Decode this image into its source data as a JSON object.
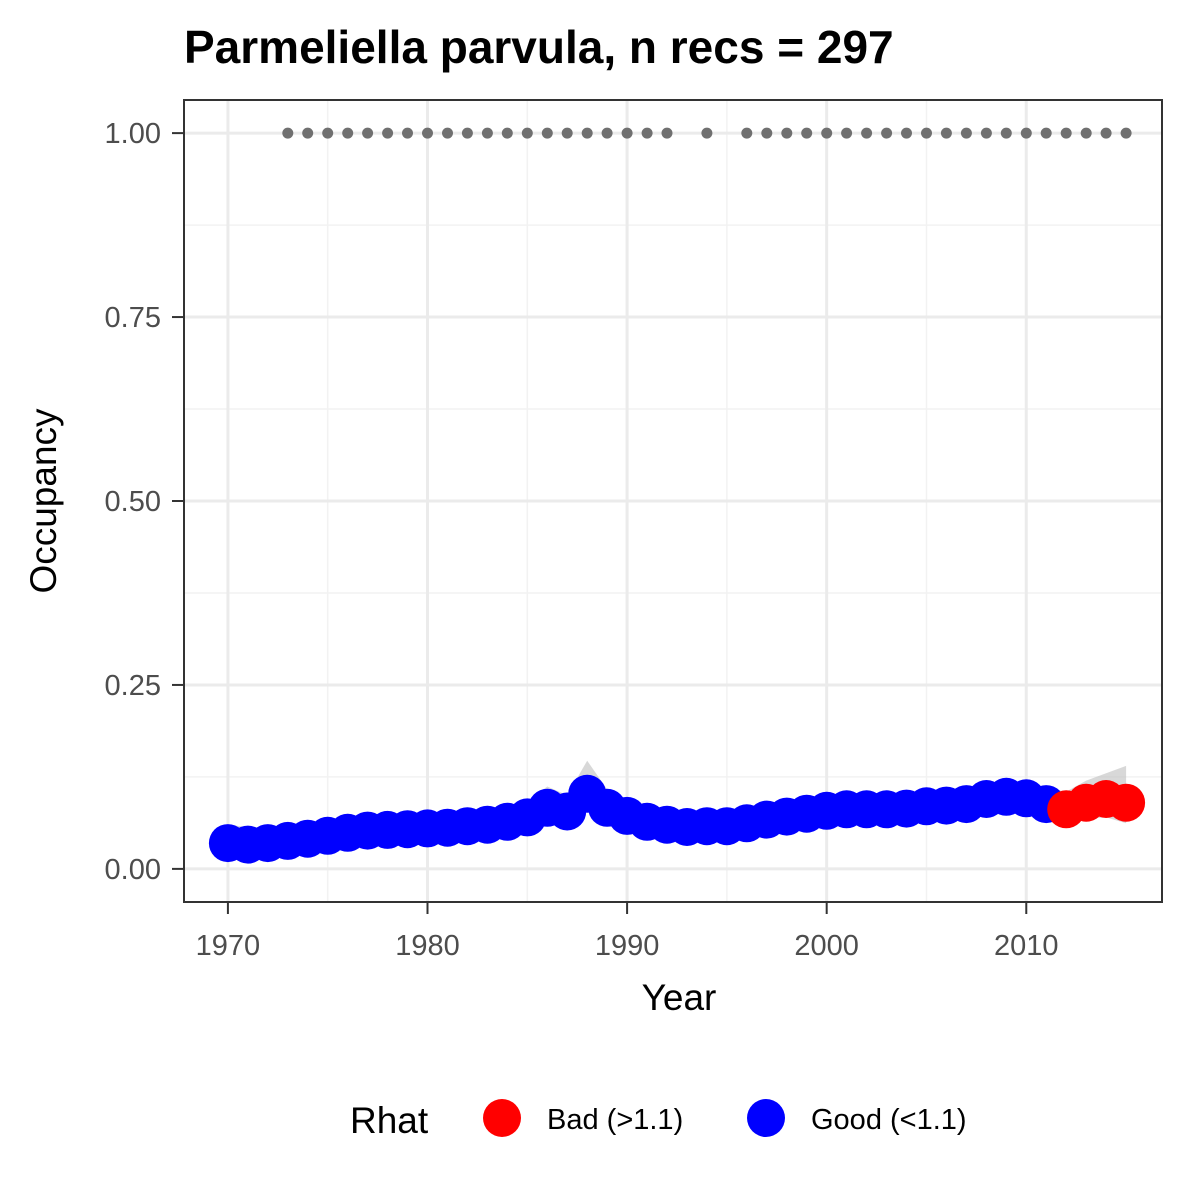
{
  "chart_data": {
    "type": "line",
    "title": "Parmeliella parvula, n recs = 297",
    "xlabel": "Year",
    "ylabel": "Occupancy",
    "xlim": [
      1967.8,
      2016.8
    ],
    "ylim": [
      -0.045,
      1.045
    ],
    "x_ticks": [
      1970,
      1980,
      1990,
      2000,
      2010
    ],
    "x_tick_labels": [
      "1970",
      "1980",
      "1990",
      "2000",
      "2010"
    ],
    "y_ticks": [
      0,
      0.25,
      0.5,
      0.75,
      1
    ],
    "y_tick_labels": [
      "0.00",
      "0.25",
      "0.50",
      "0.75",
      "1.00"
    ],
    "grid": true,
    "legend": {
      "title": "Rhat",
      "position": "bottom",
      "entries": [
        {
          "label": "Bad (>1.1)",
          "color": "#ff0000"
        },
        {
          "label": "Good (<1.1)",
          "color": "#0000ff"
        }
      ]
    },
    "colors": {
      "bad": "#ff0000",
      "good": "#0000ff",
      "ribbon": "#bebebe",
      "record_dots": "#707070"
    },
    "series": [
      {
        "name": "Occupancy",
        "x": [
          1970,
          1971,
          1972,
          1973,
          1974,
          1975,
          1976,
          1977,
          1978,
          1979,
          1980,
          1981,
          1982,
          1983,
          1984,
          1985,
          1986,
          1987,
          1988,
          1989,
          1990,
          1991,
          1992,
          1993,
          1994,
          1995,
          1996,
          1997,
          1998,
          1999,
          2000,
          2001,
          2002,
          2003,
          2004,
          2005,
          2006,
          2007,
          2008,
          2009,
          2010,
          2011,
          2012,
          2013,
          2014,
          2015
        ],
        "y": [
          0.035,
          0.033,
          0.035,
          0.038,
          0.041,
          0.045,
          0.049,
          0.052,
          0.053,
          0.054,
          0.055,
          0.056,
          0.058,
          0.06,
          0.064,
          0.07,
          0.083,
          0.078,
          0.102,
          0.083,
          0.072,
          0.064,
          0.06,
          0.057,
          0.058,
          0.058,
          0.062,
          0.067,
          0.071,
          0.075,
          0.079,
          0.081,
          0.081,
          0.081,
          0.082,
          0.085,
          0.086,
          0.088,
          0.095,
          0.098,
          0.096,
          0.088,
          0.081,
          0.09,
          0.095,
          0.09
        ],
        "lower": [
          0.02,
          0.02,
          0.022,
          0.025,
          0.028,
          0.032,
          0.036,
          0.039,
          0.04,
          0.041,
          0.042,
          0.043,
          0.045,
          0.047,
          0.05,
          0.055,
          0.066,
          0.064,
          0.085,
          0.07,
          0.06,
          0.052,
          0.048,
          0.045,
          0.045,
          0.045,
          0.049,
          0.054,
          0.058,
          0.062,
          0.066,
          0.068,
          0.068,
          0.068,
          0.069,
          0.071,
          0.072,
          0.074,
          0.08,
          0.082,
          0.08,
          0.072,
          0.06,
          0.068,
          0.07,
          0.062
        ],
        "upper": [
          0.06,
          0.057,
          0.056,
          0.058,
          0.06,
          0.063,
          0.067,
          0.07,
          0.071,
          0.072,
          0.073,
          0.074,
          0.076,
          0.079,
          0.084,
          0.092,
          0.112,
          0.1,
          0.147,
          0.108,
          0.092,
          0.083,
          0.078,
          0.074,
          0.075,
          0.075,
          0.079,
          0.084,
          0.088,
          0.092,
          0.096,
          0.1,
          0.1,
          0.1,
          0.1,
          0.104,
          0.105,
          0.107,
          0.116,
          0.12,
          0.118,
          0.11,
          0.105,
          0.12,
          0.13,
          0.14
        ],
        "rhat_status": [
          "good",
          "good",
          "good",
          "good",
          "good",
          "good",
          "good",
          "good",
          "good",
          "good",
          "good",
          "good",
          "good",
          "good",
          "good",
          "good",
          "good",
          "good",
          "good",
          "good",
          "good",
          "good",
          "good",
          "good",
          "good",
          "good",
          "good",
          "good",
          "good",
          "good",
          "good",
          "good",
          "good",
          "good",
          "good",
          "good",
          "good",
          "good",
          "good",
          "good",
          "good",
          "good",
          "bad",
          "bad",
          "bad",
          "bad"
        ]
      }
    ],
    "record_years": {
      "y": 1,
      "x": [
        1973,
        1974,
        1975,
        1976,
        1977,
        1978,
        1979,
        1980,
        1981,
        1982,
        1983,
        1984,
        1985,
        1986,
        1987,
        1988,
        1989,
        1990,
        1991,
        1992,
        1994,
        1996,
        1997,
        1998,
        1999,
        2000,
        2001,
        2002,
        2003,
        2004,
        2005,
        2006,
        2007,
        2008,
        2009,
        2010,
        2011,
        2012,
        2013,
        2014,
        2015
      ]
    }
  }
}
